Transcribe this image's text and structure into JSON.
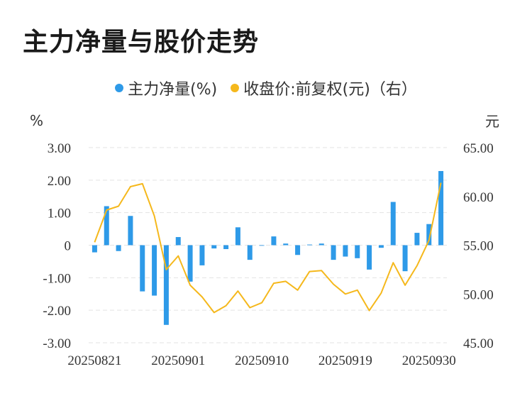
{
  "title": "主力净量与股价走势",
  "chart_data": {
    "type": "bar+line",
    "legend": [
      {
        "name": "主力净量(%)",
        "color": "#2e9ae8"
      },
      {
        "name": "收盘价:前复权(元)（右）",
        "color": "#f5b81c"
      }
    ],
    "left_unit": "%",
    "right_unit": "元",
    "left_ylim": [
      -3,
      3
    ],
    "right_ylim": [
      45,
      65
    ],
    "left_ticks": [
      "3.00",
      "2.00",
      "1.00",
      "0",
      "-1.00",
      "-2.00",
      "-3.00"
    ],
    "right_ticks": [
      "65.00",
      "60.00",
      "55.00",
      "50.00",
      "45.00"
    ],
    "x_tick_labels": [
      {
        "index": 0,
        "label": "20250821"
      },
      {
        "index": 7,
        "label": "20250901"
      },
      {
        "index": 14,
        "label": "20250910"
      },
      {
        "index": 21,
        "label": "20250919"
      },
      {
        "index": 28,
        "label": "20250930"
      }
    ],
    "series": [
      {
        "name": "主力净量(%)",
        "type": "bar",
        "axis": "left",
        "values": [
          -0.22,
          1.2,
          -0.18,
          0.9,
          -1.42,
          -1.55,
          -2.45,
          0.25,
          -1.12,
          -0.62,
          -0.1,
          -0.12,
          0.55,
          -0.45,
          0.0,
          0.27,
          0.05,
          -0.3,
          0.02,
          0.05,
          -0.45,
          -0.35,
          -0.4,
          -0.75,
          -0.08,
          1.33,
          -0.8,
          0.38,
          0.65,
          2.28
        ]
      },
      {
        "name": "收盘价:前复权(元)",
        "type": "line",
        "axis": "right",
        "values": [
          55.3,
          58.6,
          59.0,
          61.0,
          61.3,
          58.0,
          52.5,
          53.9,
          50.9,
          49.7,
          48.1,
          48.8,
          50.3,
          48.6,
          49.1,
          51.1,
          51.3,
          50.4,
          52.3,
          52.4,
          51.0,
          50.0,
          50.4,
          48.3,
          50.1,
          53.2,
          50.9,
          52.9,
          55.5,
          61.4
        ]
      }
    ]
  }
}
